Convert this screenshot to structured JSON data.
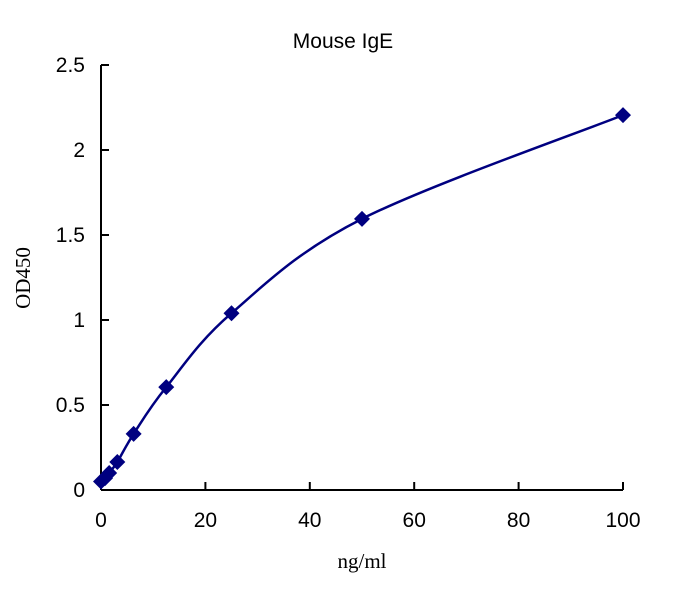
{
  "chart_data": {
    "type": "scatter",
    "title": "Mouse  IgE",
    "xlabel": "ng/ml",
    "ylabel": "OD450",
    "xlim": [
      0,
      100
    ],
    "ylim": [
      0,
      2.5
    ],
    "xticks": [
      0,
      20,
      40,
      60,
      80,
      100
    ],
    "yticks": [
      0,
      0.5,
      1,
      1.5,
      2,
      2.5
    ],
    "xtick_labels": [
      "0",
      "20",
      "40",
      "60",
      "80",
      "100"
    ],
    "ytick_labels": [
      "0",
      "0.5",
      "1",
      "1.5",
      "2",
      "2.5"
    ],
    "grid": false,
    "marker": "diamond",
    "smooth_line": true,
    "series": [
      {
        "x": [
          0,
          0.78,
          1.56,
          3.125,
          6.25,
          12.5,
          25,
          50,
          100
        ],
        "y": [
          0.05,
          0.07,
          0.1,
          0.165,
          0.33,
          0.605,
          1.04,
          1.595,
          2.205
        ]
      }
    ],
    "colors": {
      "series": "#000080",
      "axis": "#000000"
    }
  }
}
